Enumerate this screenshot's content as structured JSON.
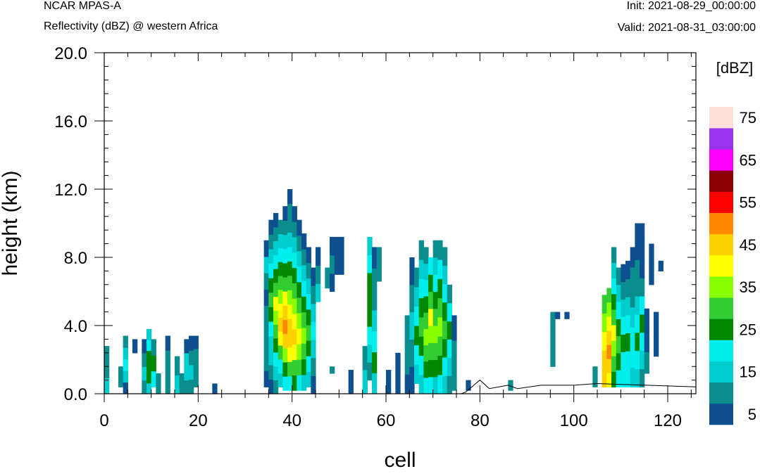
{
  "header": {
    "model": "NCAR MPAS-A",
    "field": "Reflectivity (dBZ) @ western Africa",
    "init": "Init: 2021-08-29_00:00:00",
    "valid": "Valid: 2021-08-31_03:00:00"
  },
  "chart_data": {
    "type": "heatmap",
    "xlabel": "cell",
    "ylabel": "height (km)",
    "xlim": [
      0,
      126
    ],
    "ylim": [
      0,
      20
    ],
    "x_ticks": [
      0,
      20,
      40,
      60,
      80,
      100,
      120
    ],
    "y_ticks": [
      0,
      4,
      8,
      12,
      16,
      20
    ],
    "y_tick_labels": [
      "0.0",
      "4.0",
      "8.0",
      "12.0",
      "16.0",
      "20.0"
    ],
    "colorbar": {
      "unit": "[dBZ]",
      "levels": [
        5,
        10,
        15,
        20,
        25,
        30,
        35,
        40,
        45,
        50,
        55,
        60,
        65,
        70,
        75
      ],
      "labels": [
        "5",
        "15",
        "25",
        "35",
        "45",
        "55",
        "65",
        "75"
      ],
      "colors": [
        "#0e4f8f",
        "#0b8d8d",
        "#00cece",
        "#00eeee",
        "#008800",
        "#33cc33",
        "#88ff00",
        "#ffff00",
        "#ffd000",
        "#ff8800",
        "#ff0000",
        "#8b0000",
        "#ff00ff",
        "#9933ee",
        "#ffe0d8"
      ]
    },
    "bin_size": {
      "x": 1,
      "y": 0.4
    },
    "columns": [
      {
        "x": 0,
        "bottom": 0,
        "top": 2.8,
        "values": [
          15,
          10,
          10
        ]
      },
      {
        "x": 3,
        "bottom": 0.4,
        "top": 1.6,
        "values": [
          10
        ]
      },
      {
        "x": 4,
        "bottom": 0,
        "top": 3.4,
        "values": [
          5,
          15,
          20,
          15,
          10
        ]
      },
      {
        "x": 6,
        "bottom": 2.4,
        "top": 3.2,
        "values": [
          5
        ]
      },
      {
        "x": 8,
        "bottom": 0,
        "top": 3.2,
        "values": [
          10,
          15,
          10,
          5
        ]
      },
      {
        "x": 9,
        "bottom": 0,
        "top": 3.8,
        "values": [
          15,
          25,
          25,
          25,
          20,
          15
        ]
      },
      {
        "x": 10,
        "bottom": 0.4,
        "top": 3.2,
        "values": [
          20,
          25,
          10
        ]
      },
      {
        "x": 11,
        "bottom": 0,
        "top": 1.2,
        "values": [
          10
        ]
      },
      {
        "x": 13,
        "bottom": 0,
        "top": 3.4,
        "values": [
          10,
          10,
          10,
          5
        ]
      },
      {
        "x": 15,
        "bottom": 0,
        "top": 2.2,
        "values": [
          15,
          10
        ]
      },
      {
        "x": 16,
        "bottom": 0,
        "top": 1.2,
        "values": [
          10
        ]
      },
      {
        "x": 17,
        "bottom": 0,
        "top": 3.2,
        "values": [
          10,
          15,
          15,
          5
        ]
      },
      {
        "x": 18,
        "bottom": 0,
        "top": 3.4,
        "values": [
          10,
          15,
          10,
          5
        ]
      },
      {
        "x": 19,
        "bottom": 0.4,
        "top": 3.4,
        "values": [
          10,
          10,
          10,
          5
        ]
      },
      {
        "x": 23,
        "bottom": 0,
        "top": 0.6,
        "values": [
          5
        ]
      },
      {
        "x": 34,
        "bottom": 0.4,
        "top": 9.0,
        "values": [
          5,
          10,
          10,
          10,
          10,
          5,
          10,
          15,
          5
        ]
      },
      {
        "x": 35,
        "bottom": 0,
        "top": 10.2,
        "values": [
          5,
          10,
          15,
          15,
          20,
          25,
          30,
          25,
          20,
          15,
          10,
          5
        ]
      },
      {
        "x": 36,
        "bottom": 0,
        "top": 10.6,
        "values": [
          10,
          15,
          20,
          25,
          30,
          35,
          40,
          30,
          25,
          20,
          15,
          10,
          5
        ]
      },
      {
        "x": 37,
        "bottom": 0.4,
        "top": 10.2,
        "values": [
          15,
          20,
          30,
          40,
          45,
          40,
          35,
          30,
          25,
          20,
          15,
          10
        ]
      },
      {
        "x": 38,
        "bottom": 0.2,
        "top": 11.0,
        "values": [
          20,
          25,
          35,
          45,
          50,
          45,
          40,
          30,
          25,
          20,
          15,
          10,
          5
        ]
      },
      {
        "x": 39,
        "bottom": 0.2,
        "top": 12.0,
        "values": [
          20,
          30,
          40,
          45,
          45,
          40,
          35,
          30,
          25,
          20,
          15,
          10,
          10,
          5
        ]
      },
      {
        "x": 40,
        "bottom": 0.2,
        "top": 11.0,
        "values": [
          25,
          30,
          40,
          45,
          40,
          35,
          30,
          25,
          20,
          15,
          10,
          5
        ]
      },
      {
        "x": 41,
        "bottom": 0.2,
        "top": 10.2,
        "values": [
          20,
          30,
          35,
          40,
          35,
          30,
          25,
          20,
          15,
          10,
          5
        ]
      },
      {
        "x": 42,
        "bottom": 0.2,
        "top": 9.4,
        "values": [
          15,
          25,
          30,
          35,
          30,
          25,
          20,
          15,
          10,
          5
        ]
      },
      {
        "x": 43,
        "bottom": 0.4,
        "top": 8.6,
        "values": [
          15,
          20,
          25,
          30,
          25,
          20,
          15,
          10,
          5
        ]
      },
      {
        "x": 44,
        "bottom": 0,
        "top": 7.4,
        "values": [
          5,
          10,
          15,
          20,
          15,
          10,
          5
        ]
      },
      {
        "x": 45,
        "bottom": 5.4,
        "top": 8.6,
        "values": [
          15,
          10,
          5
        ]
      },
      {
        "x": 47,
        "bottom": 6.2,
        "top": 7.4,
        "values": [
          10
        ]
      },
      {
        "x": 48,
        "bottom": 1.2,
        "top": 0.6,
        "values": [
          10
        ]
      },
      {
        "x": 48,
        "bottom": 6.0,
        "top": 9.2,
        "values": [
          5,
          10,
          5
        ]
      },
      {
        "x": 49,
        "bottom": 7.0,
        "top": 9.2,
        "values": [
          5
        ]
      },
      {
        "x": 50,
        "bottom": 7.0,
        "top": 9.2,
        "values": [
          5
        ]
      },
      {
        "x": 52,
        "bottom": 0,
        "top": 1.4,
        "values": [
          5
        ]
      },
      {
        "x": 55,
        "bottom": 0,
        "top": 2.8,
        "values": [
          15,
          10
        ]
      },
      {
        "x": 56,
        "bottom": 0.8,
        "top": 9.2,
        "values": [
          10,
          15,
          20,
          25,
          25,
          25,
          20,
          15
        ]
      },
      {
        "x": 57,
        "bottom": 0,
        "top": 8.6,
        "values": [
          15,
          25,
          20,
          15,
          10,
          10,
          5
        ]
      },
      {
        "x": 58,
        "bottom": 6.6,
        "top": 8.6,
        "values": [
          10
        ]
      },
      {
        "x": 60,
        "bottom": 0,
        "top": 1.4,
        "values": [
          5
        ]
      },
      {
        "x": 62,
        "bottom": 0,
        "top": 2.4,
        "values": [
          5
        ]
      },
      {
        "x": 64,
        "bottom": 0,
        "top": 4.6,
        "values": [
          5,
          10,
          10,
          10
        ]
      },
      {
        "x": 65,
        "bottom": 0,
        "top": 8.0,
        "values": [
          5,
          10,
          15,
          10,
          5
        ]
      },
      {
        "x": 66,
        "bottom": 0.6,
        "top": 7.4,
        "values": [
          15,
          20,
          25,
          20,
          15,
          10
        ]
      },
      {
        "x": 67,
        "bottom": 0,
        "top": 9.0,
        "values": [
          15,
          20,
          25,
          30,
          25,
          20,
          15,
          10
        ]
      },
      {
        "x": 68,
        "bottom": 0,
        "top": 8.6,
        "values": [
          20,
          25,
          30,
          35,
          30,
          25,
          20,
          15,
          10
        ]
      },
      {
        "x": 69,
        "bottom": 0,
        "top": 8.0,
        "values": [
          20,
          25,
          30,
          35,
          40,
          30,
          25,
          20
        ]
      },
      {
        "x": 70,
        "bottom": 0,
        "top": 9.0,
        "values": [
          15,
          25,
          30,
          35,
          30,
          25,
          20,
          15,
          10
        ]
      },
      {
        "x": 71,
        "bottom": 0,
        "top": 9.0,
        "values": [
          20,
          25,
          30,
          35,
          30,
          25,
          20,
          10
        ]
      },
      {
        "x": 72,
        "bottom": 0,
        "top": 8.6,
        "values": [
          15,
          20,
          25,
          30,
          25,
          20,
          15,
          10
        ]
      },
      {
        "x": 73,
        "bottom": 0,
        "top": 6.4,
        "values": [
          10,
          15,
          20,
          25,
          20,
          10
        ]
      },
      {
        "x": 74,
        "bottom": 0.2,
        "top": 4.6,
        "values": [
          10,
          10,
          5
        ]
      },
      {
        "x": 77,
        "bottom": 0.2,
        "top": 0.8,
        "values": [
          5
        ]
      },
      {
        "x": 86,
        "bottom": 0.2,
        "top": 0.8,
        "values": [
          10
        ]
      },
      {
        "x": 95,
        "bottom": 1.6,
        "top": 4.8,
        "values": [
          10,
          10,
          10
        ]
      },
      {
        "x": 96,
        "bottom": 4.4,
        "top": 4.8,
        "values": [
          5
        ]
      },
      {
        "x": 98,
        "bottom": 4.4,
        "top": 4.8,
        "values": [
          5
        ]
      },
      {
        "x": 104,
        "bottom": 0.4,
        "top": 1.6,
        "values": [
          10
        ]
      },
      {
        "x": 106,
        "bottom": 0.4,
        "top": 5.8,
        "values": [
          45,
          45,
          40,
          35,
          30
        ]
      },
      {
        "x": 107,
        "bottom": 0.4,
        "top": 6.2,
        "values": [
          40,
          45,
          50,
          45,
          40,
          35,
          30
        ]
      },
      {
        "x": 108,
        "bottom": 0.4,
        "top": 8.6,
        "values": [
          25,
          30,
          35,
          40,
          30,
          25,
          20,
          15,
          10
        ]
      },
      {
        "x": 109,
        "bottom": 0.4,
        "top": 7.4,
        "values": [
          20,
          25,
          30,
          25,
          20,
          15,
          10
        ]
      },
      {
        "x": 110,
        "bottom": 0.4,
        "top": 7.6,
        "values": [
          20,
          20,
          25,
          20,
          15,
          10,
          5
        ]
      },
      {
        "x": 111,
        "bottom": 0.4,
        "top": 7.8,
        "values": [
          20,
          20,
          25,
          20,
          15,
          10,
          5
        ]
      },
      {
        "x": 112,
        "bottom": 0.4,
        "top": 8.6,
        "values": [
          15,
          20,
          20,
          15,
          10,
          10,
          5
        ]
      },
      {
        "x": 113,
        "bottom": 0.4,
        "top": 10.0,
        "values": [
          15,
          20,
          25,
          20,
          15,
          10,
          10,
          5,
          5
        ]
      },
      {
        "x": 114,
        "bottom": 0.4,
        "top": 10.0,
        "values": [
          10,
          15,
          20,
          25,
          20,
          10,
          5,
          5,
          5
        ]
      },
      {
        "x": 115,
        "bottom": 1.2,
        "top": 5.0,
        "values": [
          10,
          5,
          5
        ]
      },
      {
        "x": 116,
        "bottom": 6.4,
        "top": 8.8,
        "values": [
          5,
          5
        ]
      },
      {
        "x": 117,
        "bottom": 2.2,
        "top": 4.8,
        "values": [
          5,
          5
        ]
      },
      {
        "x": 118,
        "bottom": 7.2,
        "top": 7.8,
        "values": [
          5
        ]
      }
    ],
    "terrain": {
      "x": [
        0,
        76,
        77,
        80,
        82,
        86,
        88,
        93,
        100,
        105,
        126
      ],
      "y": [
        0,
        0,
        0.1,
        0.8,
        0.3,
        0.5,
        0.3,
        0.5,
        0.5,
        0.6,
        0.4
      ]
    }
  }
}
